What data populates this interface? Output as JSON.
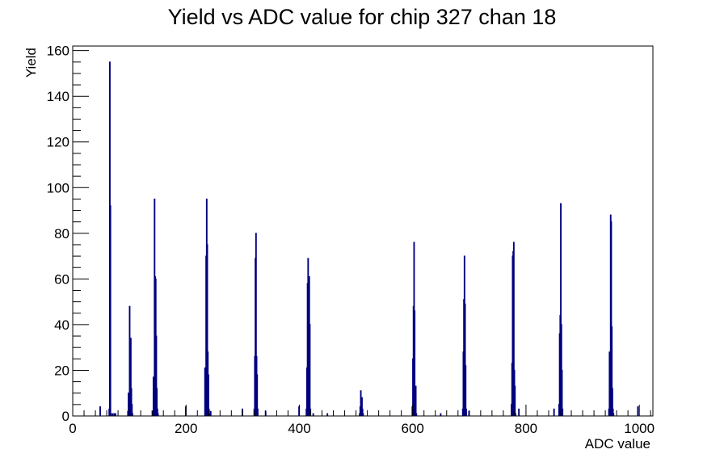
{
  "chart_data": {
    "type": "histogram",
    "title": "Yield vs ADC value for chip 327 chan 18",
    "xlabel": "ADC value",
    "ylabel": "Yield",
    "xlim": [
      0,
      1024
    ],
    "ylim": [
      0,
      162
    ],
    "bin_width": 1,
    "x_major_ticks": [
      0,
      200,
      400,
      600,
      800,
      1000
    ],
    "x_tick_labels": [
      "0",
      "200",
      "400",
      "600",
      "800",
      "1000"
    ],
    "y_major_ticks": [
      0,
      20,
      40,
      60,
      80,
      100,
      120,
      140,
      160
    ],
    "y_tick_labels": [
      "0",
      "20",
      "40",
      "60",
      "80",
      "100",
      "120",
      "140",
      "160"
    ],
    "grid": false,
    "legend": "none",
    "line_color": "#00007f",
    "bins": [
      [
        48,
        4
      ],
      [
        64,
        3
      ],
      [
        65,
        155
      ],
      [
        66,
        92
      ],
      [
        67,
        1
      ],
      [
        70,
        1
      ],
      [
        73,
        1
      ],
      [
        75,
        1
      ],
      [
        97,
        2
      ],
      [
        98,
        10
      ],
      [
        100,
        48
      ],
      [
        101,
        34
      ],
      [
        102,
        34
      ],
      [
        103,
        12
      ],
      [
        104,
        5
      ],
      [
        105,
        1
      ],
      [
        141,
        2
      ],
      [
        142,
        17
      ],
      [
        143,
        12
      ],
      [
        144,
        95
      ],
      [
        145,
        61
      ],
      [
        146,
        60
      ],
      [
        147,
        35
      ],
      [
        148,
        12
      ],
      [
        149,
        3
      ],
      [
        150,
        1
      ],
      [
        199,
        4
      ],
      [
        233,
        21
      ],
      [
        234,
        17
      ],
      [
        235,
        70
      ],
      [
        236,
        95
      ],
      [
        237,
        75
      ],
      [
        238,
        28
      ],
      [
        239,
        18
      ],
      [
        240,
        3
      ],
      [
        242,
        1
      ],
      [
        243,
        2
      ],
      [
        299,
        3
      ],
      [
        320,
        3
      ],
      [
        321,
        26
      ],
      [
        322,
        69
      ],
      [
        323,
        80
      ],
      [
        324,
        26
      ],
      [
        325,
        18
      ],
      [
        326,
        3
      ],
      [
        340,
        2
      ],
      [
        399,
        4
      ],
      [
        412,
        3
      ],
      [
        413,
        21
      ],
      [
        414,
        58
      ],
      [
        415,
        69
      ],
      [
        416,
        60
      ],
      [
        417,
        61
      ],
      [
        418,
        40
      ],
      [
        419,
        3
      ],
      [
        424,
        1
      ],
      [
        449,
        1
      ],
      [
        506,
        1
      ],
      [
        507,
        4
      ],
      [
        508,
        11
      ],
      [
        509,
        7
      ],
      [
        510,
        8
      ],
      [
        511,
        3
      ],
      [
        512,
        1
      ],
      [
        599,
        4
      ],
      [
        600,
        25
      ],
      [
        601,
        48
      ],
      [
        602,
        76
      ],
      [
        603,
        46
      ],
      [
        604,
        12
      ],
      [
        605,
        13
      ],
      [
        606,
        1
      ],
      [
        649,
        1
      ],
      [
        688,
        3
      ],
      [
        689,
        28
      ],
      [
        690,
        51
      ],
      [
        691,
        70
      ],
      [
        692,
        49
      ],
      [
        693,
        22
      ],
      [
        694,
        3
      ],
      [
        699,
        2
      ],
      [
        774,
        5
      ],
      [
        775,
        23
      ],
      [
        776,
        70
      ],
      [
        777,
        72
      ],
      [
        778,
        76
      ],
      [
        779,
        20
      ],
      [
        780,
        13
      ],
      [
        781,
        1
      ],
      [
        787,
        3
      ],
      [
        849,
        3
      ],
      [
        858,
        5
      ],
      [
        859,
        36
      ],
      [
        860,
        44
      ],
      [
        861,
        93
      ],
      [
        862,
        40
      ],
      [
        863,
        20
      ],
      [
        864,
        3
      ],
      [
        946,
        3
      ],
      [
        947,
        28
      ],
      [
        948,
        21
      ],
      [
        949,
        88
      ],
      [
        950,
        85
      ],
      [
        951,
        39
      ],
      [
        952,
        12
      ],
      [
        953,
        3
      ],
      [
        954,
        1
      ],
      [
        997,
        4
      ]
    ]
  }
}
